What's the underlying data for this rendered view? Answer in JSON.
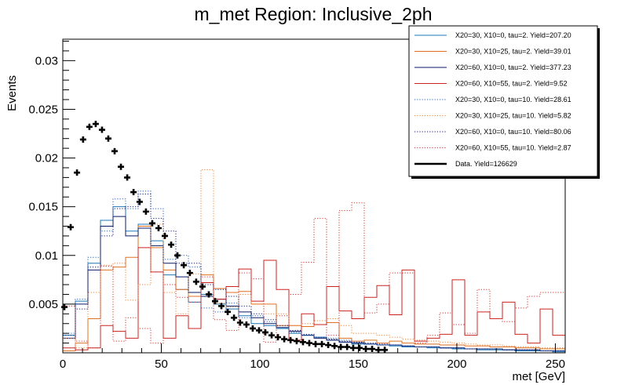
{
  "chart_data": {
    "type": "step-histogram",
    "title": "m_met Region: Inclusive_2ph",
    "xlabel": "met [GeV]",
    "ylabel": "Events",
    "xlim": [
      0,
      255
    ],
    "ylim": [
      0,
      0.0322
    ],
    "bin_width": 6.375,
    "x_ticks": [
      0,
      50,
      100,
      150,
      200,
      250
    ],
    "x_tick_labels": [
      "0",
      "50",
      "100",
      "150",
      "200",
      "250"
    ],
    "y_ticks": [
      0.005,
      0.01,
      0.015,
      0.02,
      0.025,
      0.03
    ],
    "y_tick_labels": [
      "0.005",
      "0.01",
      "0.015",
      "0.02",
      "0.025",
      "0.03"
    ],
    "grid": false,
    "legend_position": "top-right",
    "series": [
      {
        "name": "X20=30, X10=0, tau=2. Yield=207.20",
        "color": "#1f77b4",
        "style": "solid",
        "values": [
          0.0018,
          0.0053,
          0.0092,
          0.0136,
          0.015,
          0.0125,
          0.0132,
          0.0115,
          0.008,
          0.0065,
          0.0052,
          0.006,
          0.005,
          0.0045,
          0.0038,
          0.003,
          0.0028,
          0.0025,
          0.002,
          0.0018,
          0.0016,
          0.0013,
          0.0011,
          0.0009,
          0.0009,
          0.0008,
          0.0007,
          0.0006,
          0.0006,
          0.0005,
          0.0005,
          0.0004,
          0.0004,
          0.0003,
          0.0003,
          0.0003,
          0.0002,
          0.0002,
          0.0002,
          0.0001
        ]
      },
      {
        "name": "X20=30, X10=25, tau=2. Yield=39.01",
        "color": "#e07020",
        "style": "solid",
        "values": [
          0.0002,
          0.001,
          0.0035,
          0.0085,
          0.0088,
          0.0098,
          0.013,
          0.0108,
          0.0085,
          0.0065,
          0.0058,
          0.008,
          0.0066,
          0.0062,
          0.0063,
          0.005,
          0.005,
          0.0028,
          0.0028,
          0.0027,
          0.0029,
          0.0031,
          0.0015,
          0.0012,
          0.0013,
          0.001,
          0.0012,
          0.001,
          0.0009,
          0.0009,
          0.0008,
          0.0008,
          0.0007,
          0.0007,
          0.0006,
          0.0006,
          0.0005,
          0.0005,
          0.0004,
          0.0004
        ]
      },
      {
        "name": "X20=60, X10=0, tau=2. Yield=377.23",
        "color": "#0b1a66",
        "style": "solid",
        "values": [
          0.0015,
          0.005,
          0.0085,
          0.013,
          0.014,
          0.012,
          0.0128,
          0.011,
          0.0092,
          0.0078,
          0.0062,
          0.0058,
          0.0055,
          0.0048,
          0.0042,
          0.0036,
          0.003,
          0.0026,
          0.0022,
          0.0018,
          0.0015,
          0.0013,
          0.0011,
          0.001,
          0.0009,
          0.0008,
          0.0008,
          0.0007,
          0.0006,
          0.0006,
          0.0005,
          0.0005,
          0.0004,
          0.0004,
          0.0004,
          0.0003,
          0.0003,
          0.0003,
          0.0002,
          0.0002
        ]
      },
      {
        "name": "X20=60, X10=55, tau=2. Yield=9.52",
        "color": "#cc2222",
        "style": "solid",
        "values": [
          0.0005,
          0.0003,
          0.0005,
          0.0028,
          0.0022,
          0.0015,
          0.0108,
          0.0083,
          0.0015,
          0.0038,
          0.0025,
          0.0072,
          0.0055,
          0.0068,
          0.0086,
          0.0053,
          0.0095,
          0.0065,
          0.0013,
          0.004,
          0.0029,
          0.0068,
          0.0043,
          0.0035,
          0.0057,
          0.0069,
          0.0039,
          0.0085,
          0.0012,
          0.0015,
          0.0019,
          0.0075,
          0.0018,
          0.0042,
          0.0035,
          0.0052,
          0.0019,
          0.001,
          0.0045,
          0.0018
        ]
      },
      {
        "name": "X20=30, X10=0, tau=10. Yield=28.61",
        "color": "#2060c0",
        "style": "dotted",
        "values": [
          0.002,
          0.0055,
          0.0098,
          0.0125,
          0.0158,
          0.0148,
          0.0166,
          0.0148,
          0.0096,
          0.01,
          0.0088,
          0.0046,
          0.0042,
          0.0051,
          0.0036,
          0.0038,
          0.0032,
          0.0026,
          0.0021,
          0.0018,
          0.0016,
          0.0015,
          0.0013,
          0.0011,
          0.0009,
          0.0008,
          0.0008,
          0.0007,
          0.0006,
          0.0006,
          0.0005,
          0.0005,
          0.0004,
          0.0004,
          0.0004,
          0.0003,
          0.0003,
          0.0003,
          0.0002,
          0.0002
        ]
      },
      {
        "name": "X20=30, X10=25, tau=10. Yield=5.82",
        "color": "#f08030",
        "style": "dotted",
        "values": [
          0.0015,
          0.0005,
          0.0062,
          0.009,
          0.0092,
          0.0054,
          0.007,
          0.0132,
          0.0062,
          0.004,
          0.0081,
          0.0188,
          0.0051,
          0.0047,
          0.006,
          0.005,
          0.004,
          0.004,
          0.0028,
          0.003,
          0.0033,
          0.0035,
          0.0028,
          0.002,
          0.002,
          0.0018,
          0.0016,
          0.0014,
          0.0013,
          0.0012,
          0.0011,
          0.001,
          0.0009,
          0.0008,
          0.0008,
          0.0007,
          0.0006,
          0.0006,
          0.0005,
          0.0005
        ]
      },
      {
        "name": "X20=60, X10=0, tau=10. Yield=80.06",
        "color": "#101870",
        "style": "dotted",
        "values": [
          0.0018,
          0.0045,
          0.0088,
          0.012,
          0.0148,
          0.015,
          0.0163,
          0.0138,
          0.0125,
          0.0092,
          0.0092,
          0.007,
          0.0065,
          0.0058,
          0.0048,
          0.004,
          0.0034,
          0.0028,
          0.0023,
          0.0019,
          0.0016,
          0.0014,
          0.0012,
          0.0011,
          0.001,
          0.0009,
          0.0008,
          0.0007,
          0.0006,
          0.0006,
          0.0005,
          0.0005,
          0.0004,
          0.0004,
          0.0004,
          0.0003,
          0.0003,
          0.0003,
          0.0002,
          0.0002
        ]
      },
      {
        "name": "X20=60, X10=55, tau=10. Yield=2.87",
        "color": "#d03030",
        "style": "dotted",
        "values": [
          0.0048,
          0.0012,
          0.0005,
          0.0089,
          0.0012,
          0.0036,
          0.0025,
          0.001,
          0.007,
          0.0057,
          0.0052,
          0.0078,
          0.0034,
          0.0023,
          0.0082,
          0.0076,
          0.0011,
          0.0038,
          0.006,
          0.0093,
          0.0138,
          0.0018,
          0.0146,
          0.0154,
          0.0041,
          0.005,
          0.0082,
          0.0082,
          0.001,
          0.0018,
          0.0041,
          0.0029,
          0.002,
          0.0065,
          0.0035,
          0.0032,
          0.0046,
          0.0058,
          0.0062,
          0.0062
        ]
      },
      {
        "name": "Data. Yield=126629",
        "color": "#000000",
        "style": "markers",
        "x": [
          0.8,
          4.0,
          7.2,
          10.3,
          13.5,
          16.7,
          19.9,
          23.1,
          26.3,
          29.5,
          32.7,
          35.9,
          39.0,
          42.2,
          45.4,
          48.6,
          51.8,
          55.0,
          58.2,
          61.4,
          64.5,
          67.7,
          70.9,
          74.1,
          77.3,
          80.5,
          83.7,
          86.9,
          90.0,
          93.2,
          96.4,
          99.6,
          102.8,
          106.0,
          109.2,
          112.4,
          115.6,
          118.7,
          121.9,
          125.1,
          128.3,
          131.5,
          134.7,
          137.9,
          141.1,
          144.3,
          147.4,
          150.6,
          153.8,
          157.0,
          160.2,
          163.4
        ],
        "values": [
          0.0047,
          0.0129,
          0.0185,
          0.0219,
          0.0232,
          0.0235,
          0.0229,
          0.022,
          0.0207,
          0.0191,
          0.018,
          0.0165,
          0.0155,
          0.0145,
          0.0133,
          0.0128,
          0.012,
          0.0111,
          0.01,
          0.009,
          0.0082,
          0.0073,
          0.0068,
          0.006,
          0.0053,
          0.0048,
          0.0042,
          0.0036,
          0.0031,
          0.0029,
          0.0025,
          0.0023,
          0.0021,
          0.0018,
          0.0016,
          0.0014,
          0.0013,
          0.0012,
          0.0011,
          0.001,
          0.0009,
          0.0009,
          0.0008,
          0.0007,
          0.0006,
          0.0006,
          0.0005,
          0.0005,
          0.0004,
          0.0004,
          0.0003,
          0.0003
        ]
      }
    ]
  }
}
